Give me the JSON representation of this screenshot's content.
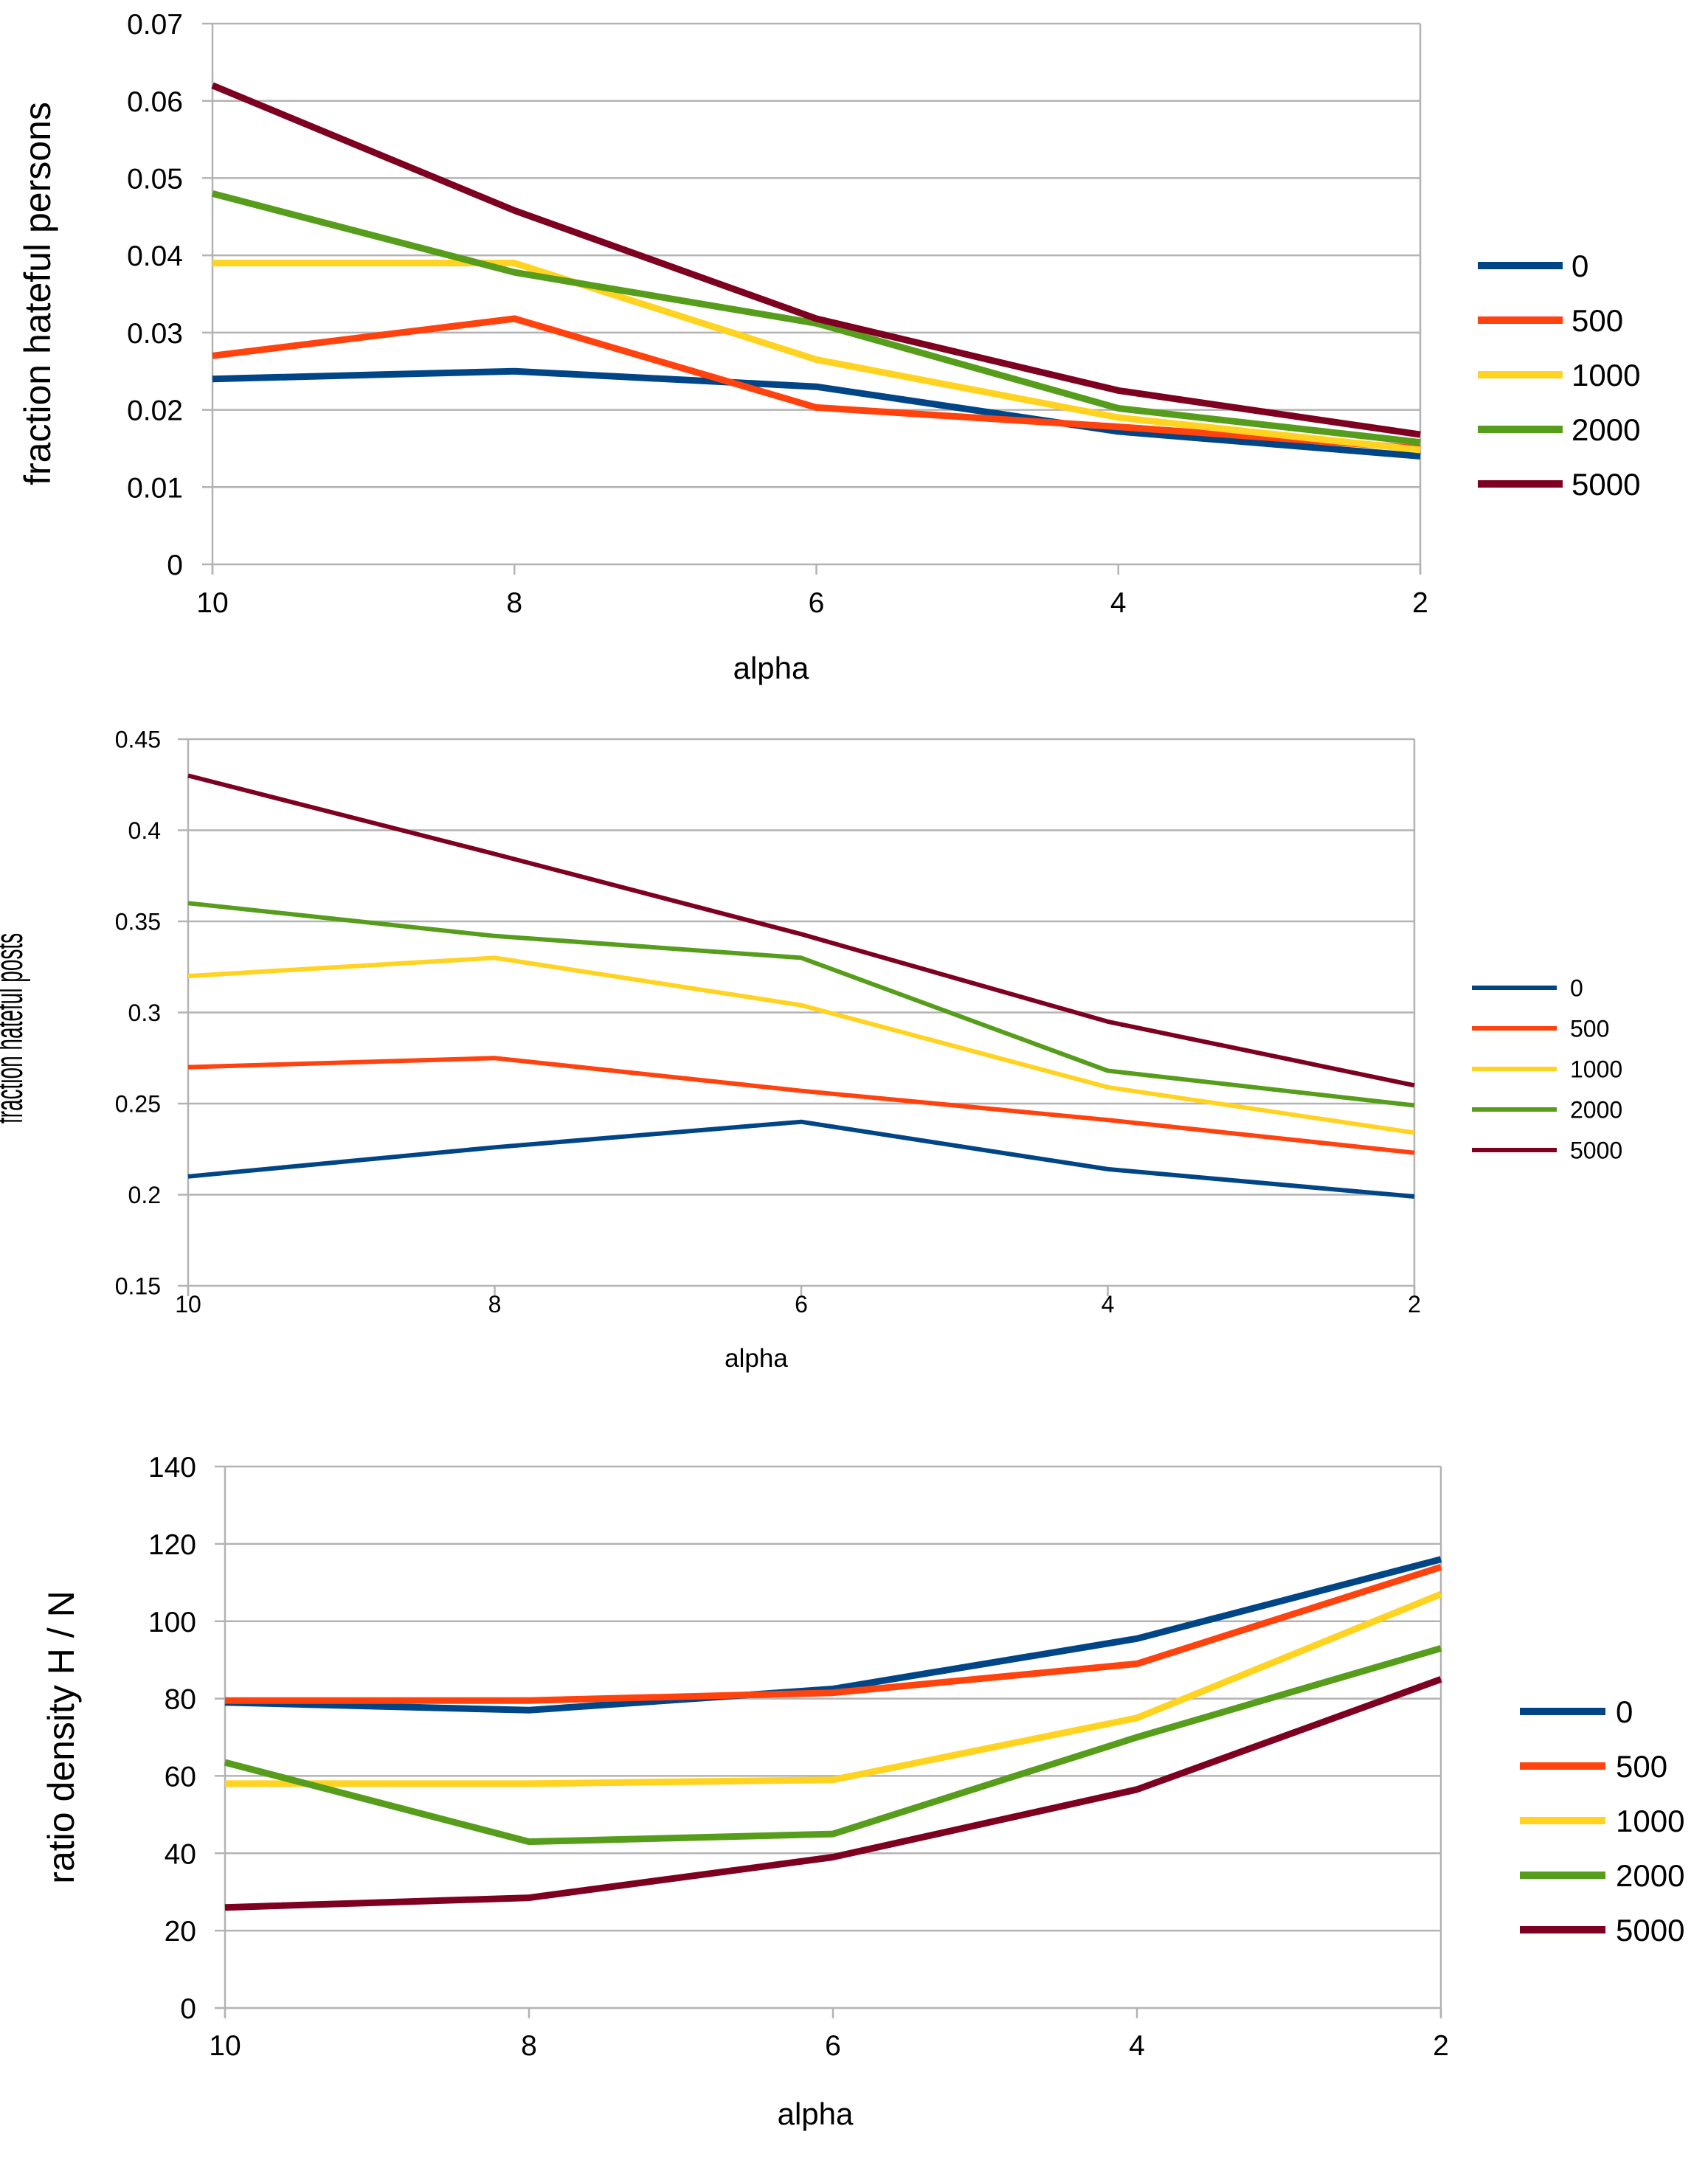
{
  "colors": {
    "grid": "#b3b3b3",
    "axis": "#b3b3b3",
    "background": "#ffffff",
    "text": "#000000"
  },
  "chart_data": [
    {
      "type": "line",
      "title": "",
      "xlabel": "alpha",
      "ylabel": "fraction hateful persons",
      "categories": [
        "10",
        "8",
        "6",
        "4",
        "2"
      ],
      "ylim": [
        0,
        0.07
      ],
      "yticks": [
        "0",
        "0.01",
        "0.02",
        "0.03",
        "0.04",
        "0.05",
        "0.06",
        "0.07"
      ],
      "grid": true,
      "legend_position": "right",
      "series": [
        {
          "name": "0",
          "color": "#004586",
          "values": [
            0.024,
            0.025,
            0.023,
            0.0172,
            0.014
          ]
        },
        {
          "name": "500",
          "color": "#ff420e",
          "values": [
            0.027,
            0.0318,
            0.0203,
            0.0178,
            0.015
          ]
        },
        {
          "name": "1000",
          "color": "#ffd320",
          "values": [
            0.039,
            0.039,
            0.0265,
            0.019,
            0.0148
          ]
        },
        {
          "name": "2000",
          "color": "#579d1c",
          "values": [
            0.048,
            0.0378,
            0.0312,
            0.0202,
            0.0158
          ]
        },
        {
          "name": "5000",
          "color": "#7e0021",
          "values": [
            0.062,
            0.0458,
            0.0318,
            0.0225,
            0.0168
          ]
        }
      ]
    },
    {
      "type": "line",
      "title": "",
      "xlabel": "alpha",
      "ylabel": "fraction hateful posts",
      "categories": [
        "10",
        "8",
        "6",
        "4",
        "2"
      ],
      "ylim": [
        0.15,
        0.45
      ],
      "yticks": [
        "0.15",
        "0.2",
        "0.25",
        "0.3",
        "0.35",
        "0.4",
        "0.45"
      ],
      "grid": true,
      "legend_position": "right",
      "series": [
        {
          "name": "0",
          "color": "#004586",
          "values": [
            0.21,
            0.226,
            0.24,
            0.214,
            0.199
          ]
        },
        {
          "name": "500",
          "color": "#ff420e",
          "values": [
            0.27,
            0.275,
            0.257,
            0.241,
            0.223
          ]
        },
        {
          "name": "1000",
          "color": "#ffd320",
          "values": [
            0.32,
            0.33,
            0.304,
            0.259,
            0.234
          ]
        },
        {
          "name": "2000",
          "color": "#579d1c",
          "values": [
            0.36,
            0.342,
            0.33,
            0.268,
            0.249
          ]
        },
        {
          "name": "5000",
          "color": "#7e0021",
          "values": [
            0.43,
            0.387,
            0.343,
            0.295,
            0.26
          ]
        }
      ]
    },
    {
      "type": "line",
      "title": "",
      "xlabel": "alpha",
      "ylabel": "ratio density H / N",
      "categories": [
        "10",
        "8",
        "6",
        "4",
        "2"
      ],
      "ylim": [
        0,
        140
      ],
      "yticks": [
        "0",
        "20",
        "40",
        "60",
        "80",
        "100",
        "120",
        "140"
      ],
      "grid": true,
      "legend_position": "right",
      "series": [
        {
          "name": "0",
          "color": "#004586",
          "values": [
            79,
            77,
            82.5,
            95.5,
            116
          ]
        },
        {
          "name": "500",
          "color": "#ff420e",
          "values": [
            79.5,
            79.5,
            81.5,
            89,
            114
          ]
        },
        {
          "name": "1000",
          "color": "#ffd320",
          "values": [
            58,
            58,
            59,
            75,
            107
          ]
        },
        {
          "name": "2000",
          "color": "#579d1c",
          "values": [
            63.5,
            43,
            45,
            70,
            93
          ]
        },
        {
          "name": "5000",
          "color": "#7e0021",
          "values": [
            26,
            28.5,
            39,
            56.5,
            85
          ]
        }
      ]
    }
  ]
}
